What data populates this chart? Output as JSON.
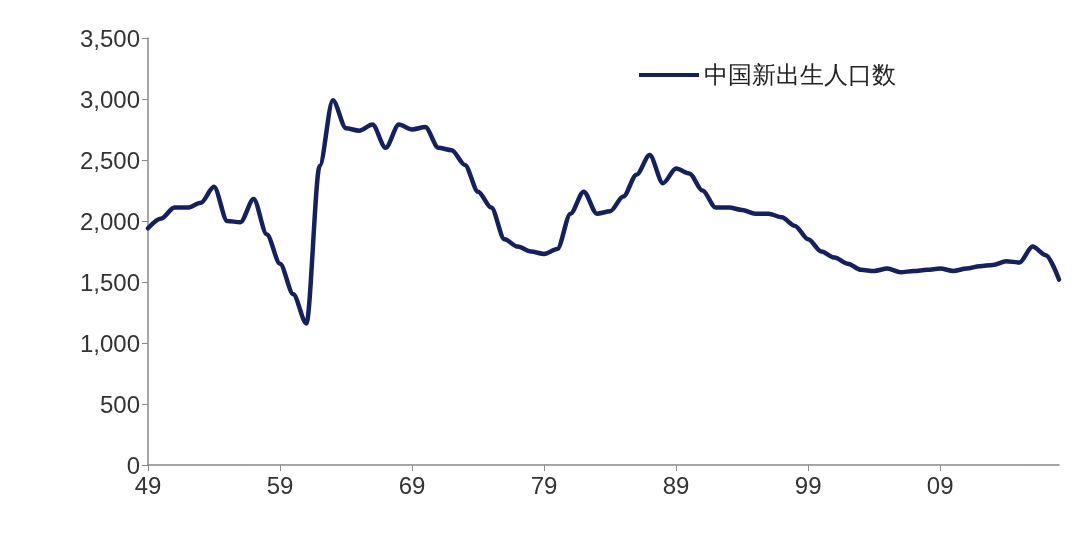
{
  "chart_data": {
    "type": "line",
    "x": [
      1949,
      1950,
      1951,
      1952,
      1953,
      1954,
      1955,
      1956,
      1957,
      1958,
      1959,
      1960,
      1961,
      1962,
      1963,
      1964,
      1965,
      1966,
      1967,
      1968,
      1969,
      1970,
      1971,
      1972,
      1973,
      1974,
      1975,
      1976,
      1977,
      1978,
      1979,
      1980,
      1981,
      1982,
      1983,
      1984,
      1985,
      1986,
      1987,
      1988,
      1989,
      1990,
      1991,
      1992,
      1993,
      1994,
      1995,
      1996,
      1997,
      1998,
      1999,
      2000,
      2001,
      2002,
      2003,
      2004,
      2005,
      2006,
      2007,
      2008,
      2009,
      2010,
      2011,
      2012,
      2013,
      2014,
      2015,
      2016,
      2017,
      2018
    ],
    "series": [
      {
        "name": "中国新出生人口数",
        "color": "#14215e",
        "values": [
          1940,
          2020,
          2110,
          2110,
          2150,
          2280,
          2000,
          1990,
          2180,
          1890,
          1650,
          1400,
          1160,
          2450,
          2990,
          2760,
          2740,
          2790,
          2600,
          2790,
          2750,
          2770,
          2600,
          2580,
          2460,
          2240,
          2110,
          1850,
          1790,
          1750,
          1730,
          1770,
          2060,
          2240,
          2060,
          2080,
          2200,
          2380,
          2540,
          2310,
          2430,
          2390,
          2250,
          2110,
          2110,
          2090,
          2060,
          2060,
          2030,
          1960,
          1850,
          1750,
          1700,
          1650,
          1600,
          1590,
          1610,
          1580,
          1590,
          1600,
          1610,
          1590,
          1610,
          1630,
          1640,
          1670,
          1660,
          1790,
          1720,
          1520
        ]
      }
    ],
    "xlim": [
      1949,
      2018
    ],
    "xticks": [
      {
        "value": 1949,
        "label": "49"
      },
      {
        "value": 1959,
        "label": "59"
      },
      {
        "value": 1969,
        "label": "69"
      },
      {
        "value": 1979,
        "label": "79"
      },
      {
        "value": 1989,
        "label": "89"
      },
      {
        "value": 1999,
        "label": "99"
      },
      {
        "value": 2009,
        "label": "09"
      }
    ],
    "ylim": [
      0,
      3500
    ],
    "yticks": [
      {
        "value": 0,
        "label": "0"
      },
      {
        "value": 500,
        "label": "500"
      },
      {
        "value": 1000,
        "label": "1,000"
      },
      {
        "value": 1500,
        "label": "1,500"
      },
      {
        "value": 2000,
        "label": "2,000"
      },
      {
        "value": 2500,
        "label": "2,500"
      },
      {
        "value": 3000,
        "label": "3,000"
      },
      {
        "value": 3500,
        "label": "3,500"
      }
    ],
    "grid": false,
    "legend": "top right",
    "marker": "none",
    "line_style": "solid"
  }
}
